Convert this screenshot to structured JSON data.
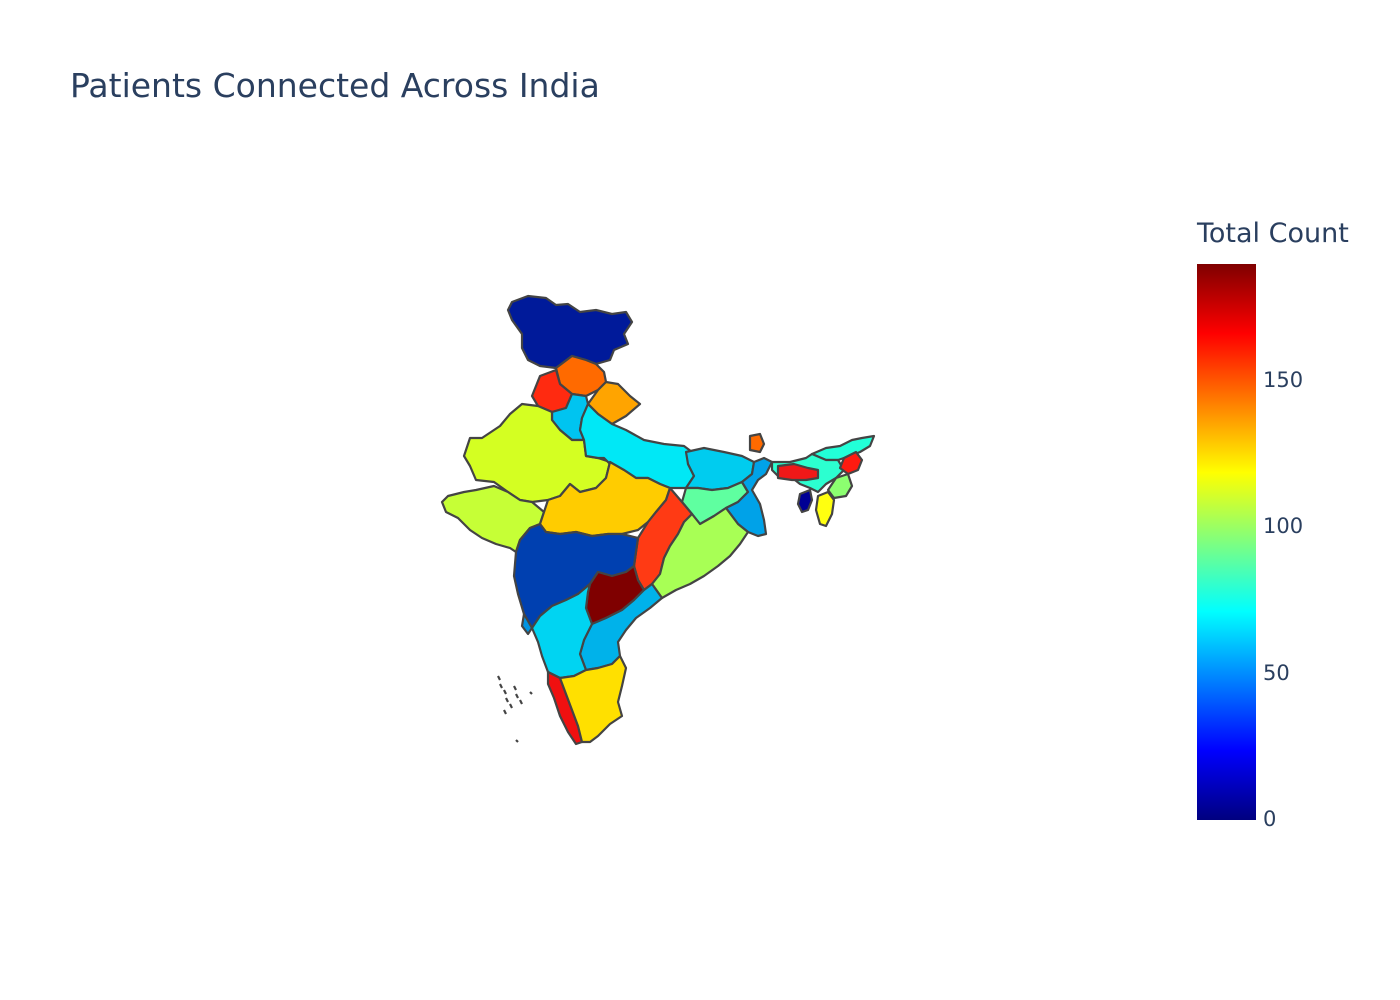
{
  "title": "Patients Connected Across India",
  "colorbar": {
    "title": "Total Count",
    "range": [
      0,
      190
    ],
    "colorscale": "jet",
    "colors": [
      "#00007f",
      "#0000ff",
      "#007fff",
      "#00ffff",
      "#7fff7f",
      "#ffff00",
      "#ff7f00",
      "#ff0000",
      "#7f0000"
    ],
    "ticks": [
      {
        "value": 0,
        "label": "0"
      },
      {
        "value": 50,
        "label": "50"
      },
      {
        "value": 100,
        "label": "100"
      },
      {
        "value": 150,
        "label": "150"
      }
    ]
  },
  "map": {
    "type": "choropleth",
    "region": "India",
    "border_color": "#444444",
    "states": [
      {
        "name": "Jammu and Kashmir",
        "value": 30,
        "color": "#001a9a"
      },
      {
        "name": "Himachal Pradesh",
        "value": 140,
        "color": "#ff6a00"
      },
      {
        "name": "Punjab",
        "value": 160,
        "color": "#ff2a10"
      },
      {
        "name": "Uttarakhand",
        "value": 128,
        "color": "#ffa400"
      },
      {
        "name": "Haryana",
        "value": 72,
        "color": "#00c4f0"
      },
      {
        "name": "Rajasthan",
        "value": 108,
        "color": "#d4ff22"
      },
      {
        "name": "Uttar Pradesh",
        "value": 75,
        "color": "#00e8f6"
      },
      {
        "name": "Gujarat",
        "value": 104,
        "color": "#c6ff36"
      },
      {
        "name": "Madhya Pradesh",
        "value": 122,
        "color": "#ffcc00"
      },
      {
        "name": "Bihar",
        "value": 70,
        "color": "#00ccef"
      },
      {
        "name": "Jharkhand",
        "value": 88,
        "color": "#5fffa0"
      },
      {
        "name": "West Bengal",
        "value": 55,
        "color": "#00a2e8"
      },
      {
        "name": "Chhattisgarh",
        "value": 160,
        "color": "#ff3a14"
      },
      {
        "name": "Odisha",
        "value": 100,
        "color": "#a8ff55"
      },
      {
        "name": "Maharashtra",
        "value": 40,
        "color": "#0040b0"
      },
      {
        "name": "Telangana",
        "value": 190,
        "color": "#7f0000"
      },
      {
        "name": "Andhra Pradesh",
        "value": 60,
        "color": "#00b2ea"
      },
      {
        "name": "Karnataka",
        "value": 70,
        "color": "#00d4f2"
      },
      {
        "name": "Goa",
        "value": 52,
        "color": "#0094e2"
      },
      {
        "name": "Kerala",
        "value": 165,
        "color": "#f01010"
      },
      {
        "name": "Tamil Nadu",
        "value": 120,
        "color": "#ffe000"
      },
      {
        "name": "Sikkim",
        "value": 140,
        "color": "#ff6a00"
      },
      {
        "name": "Assam",
        "value": 88,
        "color": "#2cffd0"
      },
      {
        "name": "Arunachal Pradesh",
        "value": 82,
        "color": "#22ffd8"
      },
      {
        "name": "Meghalaya",
        "value": 165,
        "color": "#f01818"
      },
      {
        "name": "Nagaland",
        "value": 160,
        "color": "#ff1a10"
      },
      {
        "name": "Manipur",
        "value": 98,
        "color": "#8cff70"
      },
      {
        "name": "Mizoram",
        "value": 118,
        "color": "#ffff10"
      },
      {
        "name": "Tripura",
        "value": 5,
        "color": "#000094"
      },
      {
        "name": "Andaman and Nicobar Islands",
        "value": null,
        "color": null
      }
    ]
  }
}
